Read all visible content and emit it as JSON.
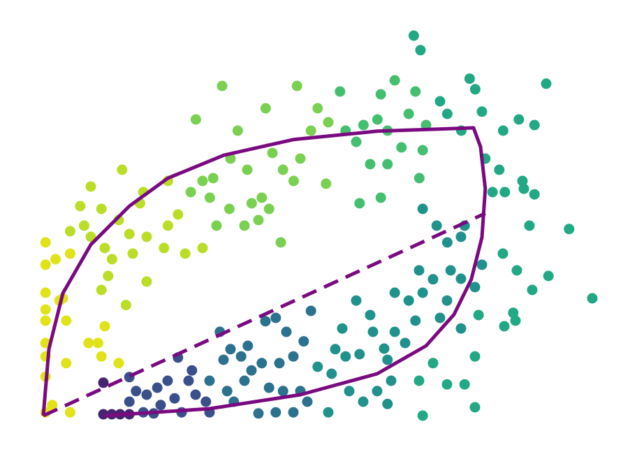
{
  "chart_data": {
    "type": "scatter",
    "xlim": [
      -0.5,
      10.5
    ],
    "ylim": [
      -0.5,
      7
    ],
    "series": [
      {
        "color": "#e0e31a",
        "x": [
          0.04,
          0.04,
          0.04,
          0.04,
          0.04,
          0.04,
          0.04,
          0.04,
          0.04,
          0.22,
          0.41,
          0.48,
          0.41,
          0.35,
          0.81,
          0.98,
          1.1,
          1.35,
          1.04,
          0.48,
          0.16,
          0.29
        ],
        "y": [
          3.1,
          2.7,
          2.2,
          1.9,
          1.7,
          1.3,
          1.06,
          0.7,
          0.06,
          2.8,
          1.7,
          0.06,
          0.94,
          2.1,
          1.3,
          1.3,
          1.6,
          0.94,
          1.06,
          2.9,
          0.19,
          2.06
        ]
      },
      {
        "color": "#bade28",
        "x": [
          0.85,
          0.66,
          1.04,
          0.48,
          0.85,
          1.1,
          1.23,
          1.54,
          1.6,
          1.79,
          1.41,
          1.73,
          1.85,
          2.16,
          2.23,
          2.41,
          2.54,
          1.16,
          1.04,
          1.48,
          1.85,
          2.85,
          2.23,
          0.73,
          1.35
        ],
        "y": [
          4.1,
          3.75,
          3.7,
          3.3,
          3.2,
          3.0,
          2.8,
          3.25,
          2.9,
          4.0,
          4.4,
          3.8,
          3.2,
          3.0,
          3.4,
          3.6,
          2.9,
          2.5,
          2.25,
          1.98,
          2.4,
          3.0,
          4.2,
          3.4,
          3.5
        ]
      },
      {
        "color": "#7ad151",
        "x": [
          2.73,
          3.2,
          2.64,
          2.85,
          3.04,
          3.35,
          3.48,
          3.6,
          3.73,
          3.91,
          4.04,
          3.85,
          3.33,
          3.1,
          3.65,
          3.98,
          4.1,
          4.25,
          4.29,
          4.48,
          4.54,
          4.79,
          4.91,
          5.1,
          5.06,
          4.6,
          2.98
        ],
        "y": [
          5.3,
          5.9,
          4.0,
          4.2,
          4.25,
          4.6,
          5.1,
          3.4,
          3.8,
          3.9,
          3.7,
          3.5,
          3.7,
          3.4,
          4.4,
          5.5,
          4.7,
          3.1,
          4.4,
          4.2,
          5.9,
          5.1,
          5.5,
          5.25,
          4.15,
          4.6,
          3.9
        ]
      },
      {
        "color": "#44bf70",
        "x": [
          5.31,
          5.41,
          5.6,
          5.73,
          5.85,
          6.04,
          6.04,
          5.66,
          6.16,
          6.29,
          6.41,
          6.54,
          6.66,
          6.79,
          6.85,
          6.73,
          5.98,
          6.16
        ],
        "y": [
          5.8,
          5.1,
          4.9,
          5.2,
          4.5,
          5.75,
          3.9,
          3.8,
          4.5,
          6.0,
          4.8,
          5.4,
          5.8,
          4.75,
          5.2,
          4.25,
          5.3,
          5.1
        ]
      },
      {
        "color": "#22a884",
        "x": [
          6.63,
          6.75,
          7.1,
          7.23,
          7.48,
          7.63,
          7.73,
          7.85,
          7.91,
          8.16,
          8.23,
          8.51,
          8.79,
          9.0,
          8.575,
          8.6,
          8.79,
          8.04,
          8.26,
          8.7,
          9.41,
          9.04,
          9.825,
          8.75,
          8.475,
          8.225,
          8.41,
          8.25,
          8.45,
          7.79,
          7.725,
          7.725,
          6.975,
          7.225,
          7.54,
          6.725,
          6.79
        ],
        "y": [
          6.8,
          6.54,
          5.625,
          5.4,
          5.1,
          6.03,
          5.84,
          5.44,
          4.6,
          4.4,
          5.1,
          5.3,
          5.2,
          5.94,
          4.2,
          4.06,
          3.96,
          4.0,
          4.0,
          3.4,
          3.34,
          2.5,
          2.1,
          2.25,
          2.6,
          2.9,
          1.84,
          1.6,
          1.7,
          1.8,
          1.06,
          0.15,
          0.94,
          0.56,
          0.56,
          0.625,
          0.0
        ]
      },
      {
        "color": "#21918c",
        "x": [
          6.79,
          7.04,
          7.23,
          7.475,
          7.54,
          7.29,
          7.475,
          7.725,
          7.85,
          6.725,
          6.975,
          6.54,
          6.29,
          6.79,
          7.225,
          6.66,
          7.1,
          7.475,
          6.29,
          6.475,
          6.1,
          5.9,
          5.66,
          5.6,
          5.85,
          6.16,
          6.225,
          5.975,
          5.725,
          5.35,
          5.41,
          5.16,
          5.225,
          5.475,
          4.91,
          6.16,
          5.1
        ],
        "y": [
          3.7,
          3.4,
          3.1,
          3.2,
          3.4,
          2.6,
          2.45,
          2.3,
          2.7,
          2.6,
          2.44,
          2.06,
          2.2,
          2.2,
          2.06,
          1.7,
          1.75,
          1.56,
          1.5,
          1.3,
          1.2,
          1.5,
          1.1,
          2.06,
          1.8,
          1.0,
          0.625,
          0.44,
          0.25,
          1.56,
          1.06,
          0.75,
          1.19,
          0.44,
          0.875,
          0.21,
          0.06
        ]
      },
      {
        "color": "#2c718e",
        "x": [
          4.79,
          4.66,
          4.35,
          4.16,
          3.975,
          4.475,
          4.225,
          3.91,
          3.66,
          3.54,
          3.725,
          3.35,
          3.16,
          3.225,
          2.975,
          3.29,
          3.6,
          4.04,
          4.29,
          4.6,
          4.725,
          4.475,
          4.16,
          3.85,
          3.41
        ],
        "y": [
          1.875,
          1.33,
          1.5,
          1.75,
          1.69,
          1.06,
          0.94,
          0.94,
          1.25,
          1.06,
          0.81,
          1.19,
          1.5,
          1.0,
          0.625,
          0.44,
          0.625,
          0.5,
          0.44,
          0.44,
          0.25,
          0.06,
          0.06,
          0.04,
          0.25
        ]
      },
      {
        "color": "#3b4f8a",
        "x": [
          2.41,
          2.225,
          2.04,
          1.85,
          1.66,
          1.54,
          1.54,
          2.1,
          2.35,
          2.6,
          2.725,
          2.91,
          2.475,
          1.79,
          1.975,
          2.975,
          2.66
        ],
        "y": [
          1.04,
          0.625,
          0.5,
          0.375,
          0.44,
          0.69,
          0.25,
          0.19,
          0.31,
          0.625,
          0.375,
          0.25,
          0.06,
          0.06,
          0.04,
          0.06,
          0.81
        ]
      },
      {
        "color": "#46256f",
        "x": [
          1.075,
          1.075,
          1.225,
          1.375,
          1.54
        ],
        "y": [
          0.025,
          0.59,
          0.025,
          0.025,
          0.025
        ]
      }
    ],
    "lines": [
      {
        "color": "#7a0a80",
        "dashed": false,
        "x": [
          0,
          0.1,
          0.35,
          0.85,
          1.54,
          2.23,
          3.23,
          4.475,
          5.975,
          7.7,
          7.825,
          7.91,
          7.85,
          7.66,
          7.35,
          6.85,
          5.975,
          4.6,
          2.975,
          1.1
        ],
        "y": [
          0,
          1.19,
          2.19,
          3.06,
          3.75,
          4.25,
          4.66,
          4.94,
          5.09,
          5.15,
          4.81,
          4.06,
          3.19,
          2.44,
          1.81,
          1.25,
          0.75,
          0.375,
          0.125,
          0.0
        ]
      },
      {
        "color": "#7a0a80",
        "dashed": true,
        "x": [
          0,
          7.91
        ],
        "y": [
          0,
          3.62
        ]
      }
    ]
  }
}
